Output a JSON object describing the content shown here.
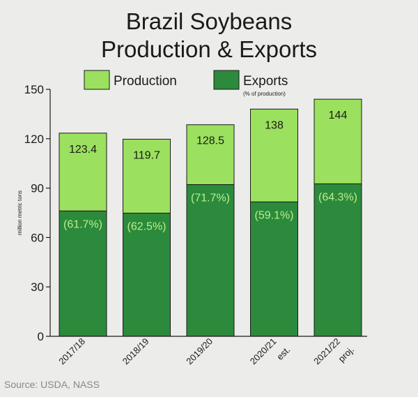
{
  "chart_data": {
    "type": "bar",
    "stacked": true,
    "title_lines": [
      "Brazil Soybeans",
      "Production & Exports"
    ],
    "ylabel": "million metric tons",
    "ylim": [
      0,
      150
    ],
    "yticks": [
      0,
      30,
      60,
      90,
      120,
      150
    ],
    "categories": [
      {
        "line1": "2017/18",
        "line2": ""
      },
      {
        "line1": "2018/19",
        "line2": ""
      },
      {
        "line1": "2019/20",
        "line2": ""
      },
      {
        "line1": "2020/21",
        "line2": "est."
      },
      {
        "line1": "2021/22",
        "line2": "proj."
      }
    ],
    "production": [
      123.4,
      119.7,
      128.5,
      138,
      144
    ],
    "production_labels": [
      "123.4",
      "119.7",
      "128.5",
      "138",
      "144"
    ],
    "exports": [
      76.1,
      74.8,
      92.1,
      81.6,
      92.6
    ],
    "export_pct_labels": [
      "(61.7%)",
      "(62.5%)",
      "(71.7%)",
      "(59.1%)",
      "(64.3%)"
    ],
    "legend": {
      "production": "Production",
      "exports": "Exports",
      "exports_note": "(% of production)",
      "placement": "top"
    },
    "colors": {
      "production": "#9be05e",
      "exports": "#2c8a3c",
      "pct_text": "#b8f08a"
    },
    "source": "Source: USDA, NASS"
  }
}
